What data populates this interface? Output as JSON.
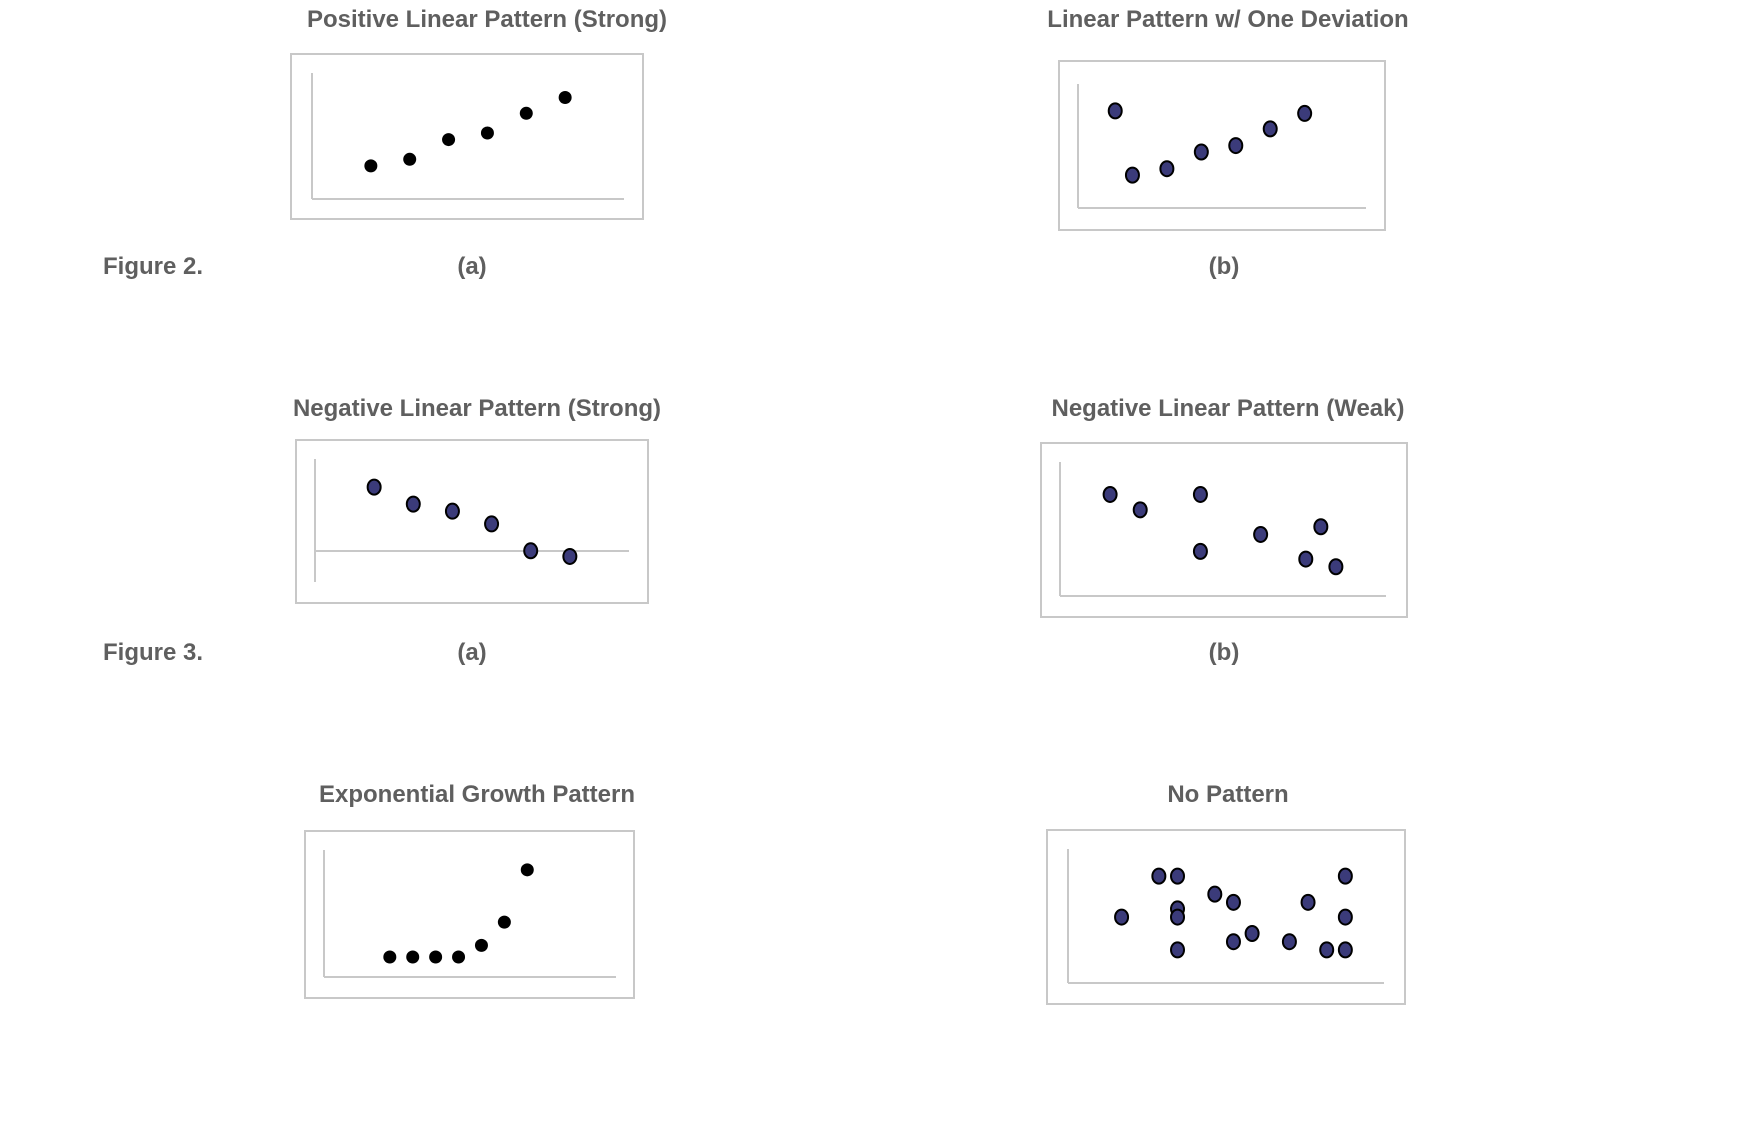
{
  "figure_labels": [
    "Figure 2.",
    "Figure 3."
  ],
  "subfigure_labels": {
    "a": "(a)",
    "b": "(b)"
  },
  "colors": {
    "text": "#5f5f5f",
    "frame": "#c8c8c8",
    "axis": "#c8c8c8",
    "dot_black": "#000000",
    "dot_navy": "#3b3b7a"
  },
  "chart_data": [
    {
      "type": "scatter",
      "title": "Positive Linear Pattern (Strong)",
      "dot": "black",
      "points": [
        [
          1,
          1
        ],
        [
          2,
          1.5
        ],
        [
          3,
          3
        ],
        [
          4,
          3.5
        ],
        [
          5,
          5
        ],
        [
          6,
          6.2
        ]
      ]
    },
    {
      "type": "scatter",
      "title": "Linear Pattern w/ One Deviation",
      "dot": "navy",
      "points": [
        [
          0.5,
          6
        ],
        [
          1,
          1
        ],
        [
          2,
          1.5
        ],
        [
          3,
          2.8
        ],
        [
          4,
          3.3
        ],
        [
          5,
          4.6
        ],
        [
          6,
          5.8
        ]
      ]
    },
    {
      "type": "scatter",
      "title": "Negative Linear Pattern (Strong)",
      "dot": "navy",
      "points": [
        [
          1,
          6
        ],
        [
          2,
          4.8
        ],
        [
          3,
          4.3
        ],
        [
          4,
          3.4
        ],
        [
          5,
          1.5
        ],
        [
          6,
          1.1
        ]
      ]
    },
    {
      "type": "scatter",
      "title": "Negative Linear Pattern (Weak)",
      "dot": "navy",
      "points": [
        [
          1,
          5.3
        ],
        [
          2,
          4.3
        ],
        [
          4,
          5.3
        ],
        [
          4,
          1.6
        ],
        [
          6,
          2.7
        ],
        [
          8,
          3.2
        ],
        [
          7.5,
          1.1
        ],
        [
          8.5,
          0.6
        ]
      ]
    },
    {
      "type": "scatter",
      "title": "Exponential Growth Pattern",
      "dot": "black",
      "points": [
        [
          1,
          0
        ],
        [
          2,
          0
        ],
        [
          3,
          0
        ],
        [
          4,
          0
        ],
        [
          5,
          0.6
        ],
        [
          6,
          1.8
        ],
        [
          7,
          4.5
        ]
      ]
    },
    {
      "type": "scatter",
      "title": "No Pattern",
      "dot": "navy",
      "points": [
        [
          1,
          2.3
        ],
        [
          3,
          4.8
        ],
        [
          4,
          4.8
        ],
        [
          4,
          2.8
        ],
        [
          4,
          2.3
        ],
        [
          4,
          0.3
        ],
        [
          6,
          3.7
        ],
        [
          7,
          3.2
        ],
        [
          7,
          0.8
        ],
        [
          8,
          1.3
        ],
        [
          10,
          0.8
        ],
        [
          11,
          3.2
        ],
        [
          12,
          0.3
        ],
        [
          13,
          4.8
        ],
        [
          13,
          2.3
        ],
        [
          13,
          0.3
        ]
      ]
    }
  ]
}
